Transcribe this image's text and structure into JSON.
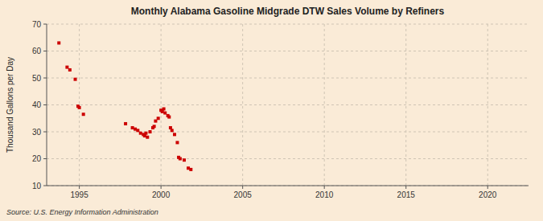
{
  "chart_data": {
    "type": "scatter",
    "title": "Monthly Alabama Gasoline Midgrade DTW Sales Volume by Refiners",
    "y_label": "Thousand Gallons per Day",
    "source": "Source: U.S. Energy Information Administration",
    "color": "#cc0000",
    "marker": "square",
    "grid": true,
    "xlim": [
      1993.0,
      2022.5
    ],
    "ylim": [
      10,
      70
    ],
    "xticks": [
      1995,
      2000,
      2005,
      2010,
      2015,
      2020
    ],
    "yticks": [
      10,
      20,
      30,
      40,
      50,
      60,
      70
    ],
    "x": [
      1993.75,
      1994.25,
      1994.42,
      1994.75,
      1994.92,
      1995.0,
      1995.25,
      1997.83,
      1998.25,
      1998.42,
      1998.58,
      1998.75,
      1998.92,
      1999.0,
      1999.08,
      1999.17,
      1999.33,
      1999.5,
      1999.58,
      1999.67,
      1999.83,
      2000.0,
      2000.08,
      2000.17,
      2000.25,
      2000.42,
      2000.5,
      2000.58,
      2000.67,
      2000.83,
      2001.0,
      2001.08,
      2001.17,
      2001.42,
      2001.67,
      2001.83
    ],
    "values": [
      63.0,
      54.0,
      53.0,
      49.5,
      39.5,
      39.0,
      36.5,
      33.0,
      31.5,
      31.0,
      30.5,
      29.5,
      29.0,
      28.5,
      29.5,
      28.0,
      30.0,
      31.5,
      32.0,
      34.0,
      35.0,
      38.0,
      37.5,
      38.5,
      37.0,
      36.0,
      35.5,
      31.5,
      30.5,
      29.0,
      26.0,
      20.5,
      20.0,
      19.5,
      16.5,
      16.0
    ]
  }
}
